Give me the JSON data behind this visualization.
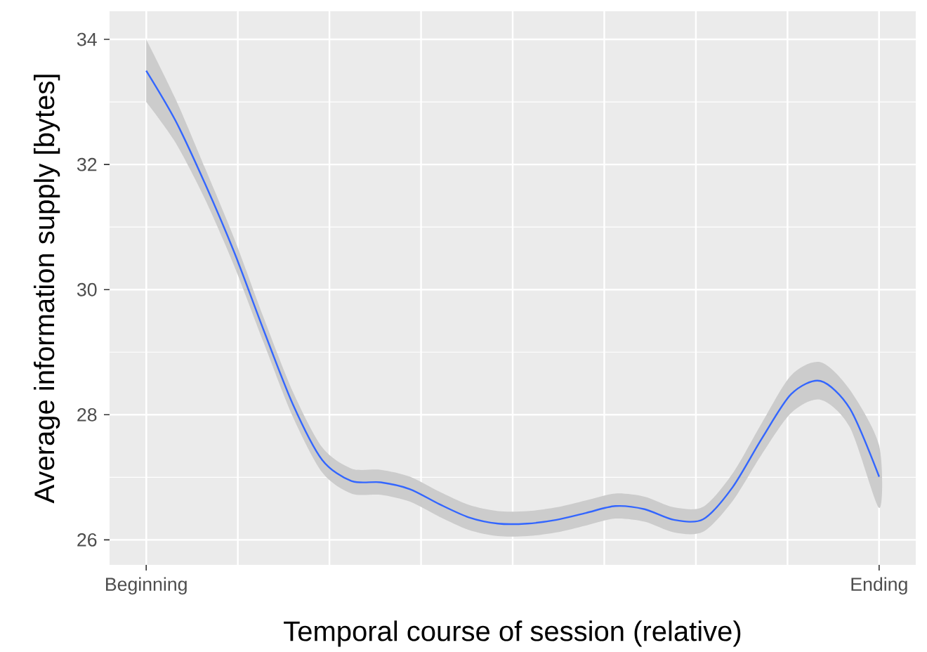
{
  "chart_data": {
    "type": "line",
    "xlabel": "Temporal course of session (relative)",
    "ylabel": "Average information supply [bytes]",
    "categories": [
      "Beginning",
      null,
      null,
      null,
      null,
      null,
      null,
      null,
      null,
      null,
      null,
      null,
      null,
      null,
      null,
      null,
      null,
      null,
      null,
      null,
      null,
      null,
      null,
      null,
      null,
      "Ending"
    ],
    "series": [
      {
        "color": "#3366ff",
        "values": [
          33.5,
          32.7,
          31.7,
          30.6,
          29.36,
          28.17,
          27.28,
          26.94,
          26.92,
          26.81,
          26.57,
          26.36,
          26.26,
          26.26,
          26.32,
          26.43,
          26.54,
          26.49,
          26.32,
          26.33,
          26.84,
          27.62,
          28.33,
          28.54,
          28.1,
          27.01
        ],
        "lower": [
          33.0,
          32.35,
          31.45,
          30.38,
          29.16,
          27.97,
          27.08,
          26.74,
          26.72,
          26.61,
          26.37,
          26.16,
          26.06,
          26.06,
          26.12,
          26.23,
          26.34,
          26.29,
          26.12,
          26.13,
          26.62,
          27.37,
          28.03,
          28.24,
          27.8,
          26.51
        ],
        "upper": [
          34.0,
          33.05,
          31.95,
          30.82,
          29.56,
          28.37,
          27.48,
          27.14,
          27.12,
          27.01,
          26.77,
          26.56,
          26.46,
          26.46,
          26.52,
          26.63,
          26.74,
          26.69,
          26.52,
          26.53,
          27.06,
          27.87,
          28.63,
          28.84,
          28.4,
          27.51
        ]
      }
    ],
    "ylim": [
      25.6,
      34.45
    ],
    "yticks": [
      26,
      28,
      30,
      32,
      34
    ],
    "grid": true,
    "marker": "none",
    "line_style": "solid"
  }
}
